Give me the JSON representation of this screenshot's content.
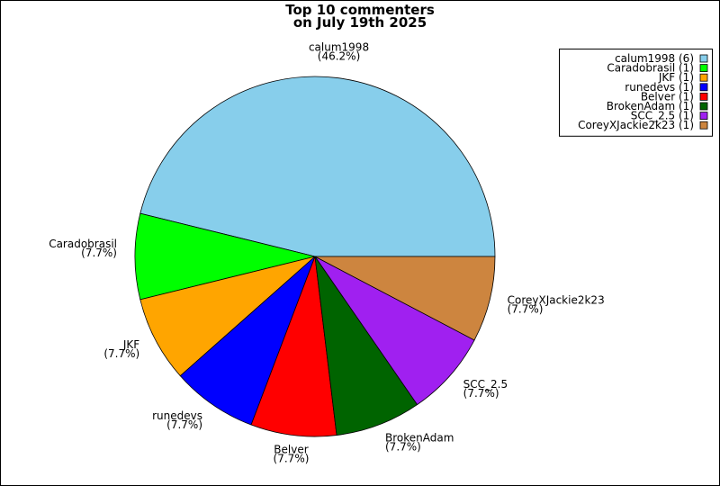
{
  "chart_data": {
    "type": "pie",
    "title": [
      "Top 10 commenters",
      "on July 19th 2025"
    ],
    "categories": [
      "calum1998",
      "Caradobrasil",
      "JKF",
      "runedevs",
      "Belver",
      "BrokenAdam",
      "SCC_2.5",
      "CoreyXJackie2k23"
    ],
    "values": [
      46.2,
      7.7,
      7.7,
      7.7,
      7.7,
      7.7,
      7.7,
      7.7
    ],
    "value_labels": [
      "(46.2%)",
      "(7.7%)",
      "(7.7%)",
      "(7.7%)",
      "(7.7%)",
      "(7.7%)",
      "(7.7%)",
      "(7.7%)"
    ],
    "colors": [
      "#87ceeb",
      "#00ff00",
      "#ffa500",
      "#0000ff",
      "#ff0000",
      "#006400",
      "#a020f0",
      "#cd853f"
    ],
    "legend_labels": [
      "calum1998 (6)",
      "Caradobrasil (1)",
      "JKF (1)",
      "runedevs (1)",
      "Belver (1)",
      "BrokenAdam (1)",
      "SCC_2.5 (1)",
      "CoreyXJackie2k23 (1)"
    ],
    "legend_position": "upper right"
  }
}
